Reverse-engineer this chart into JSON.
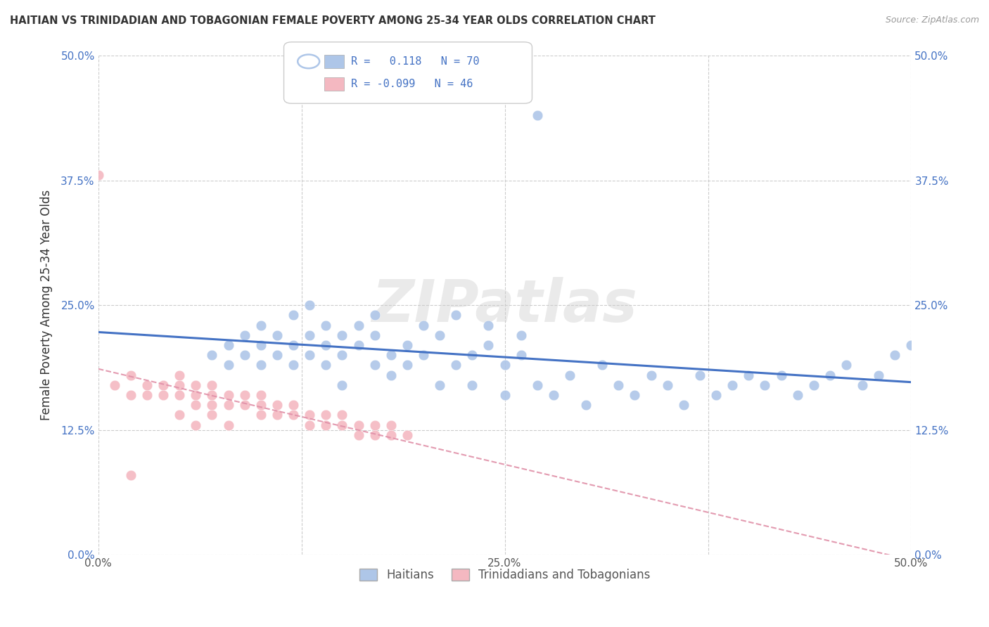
{
  "title": "HAITIAN VS TRINIDADIAN AND TOBAGONIAN FEMALE POVERTY AMONG 25-34 YEAR OLDS CORRELATION CHART",
  "source": "Source: ZipAtlas.com",
  "ylabel": "Female Poverty Among 25-34 Year Olds",
  "xlim": [
    0.0,
    0.5
  ],
  "ylim": [
    0.0,
    0.5
  ],
  "xticks": [
    0.0,
    0.125,
    0.25,
    0.375,
    0.5
  ],
  "yticks": [
    0.0,
    0.125,
    0.25,
    0.375,
    0.5
  ],
  "xticklabels": [
    "0.0%",
    "",
    "25.0%",
    "",
    "50.0%"
  ],
  "yticklabels": [
    "0.0%",
    "12.5%",
    "25.0%",
    "37.5%",
    "50.0%"
  ],
  "legend_labels": [
    "Haitians",
    "Trinidadians and Tobagonians"
  ],
  "legend_R": [
    0.118,
    -0.099
  ],
  "legend_N": [
    70,
    46
  ],
  "blue_color": "#aec6e8",
  "pink_color": "#f4b8c1",
  "blue_line_color": "#4472c4",
  "pink_line_color": "#e090a8",
  "watermark": "ZIPatlas",
  "blue_scatter_x": [
    0.07,
    0.08,
    0.08,
    0.09,
    0.09,
    0.1,
    0.1,
    0.1,
    0.11,
    0.11,
    0.12,
    0.12,
    0.12,
    0.13,
    0.13,
    0.13,
    0.14,
    0.14,
    0.14,
    0.15,
    0.15,
    0.15,
    0.16,
    0.16,
    0.17,
    0.17,
    0.17,
    0.18,
    0.18,
    0.19,
    0.19,
    0.2,
    0.2,
    0.21,
    0.21,
    0.22,
    0.22,
    0.23,
    0.23,
    0.24,
    0.24,
    0.25,
    0.25,
    0.26,
    0.26,
    0.27,
    0.28,
    0.29,
    0.3,
    0.31,
    0.32,
    0.33,
    0.34,
    0.35,
    0.36,
    0.37,
    0.38,
    0.39,
    0.4,
    0.41,
    0.42,
    0.43,
    0.44,
    0.45,
    0.46,
    0.47,
    0.48,
    0.49,
    0.27,
    0.5
  ],
  "blue_scatter_y": [
    0.2,
    0.21,
    0.19,
    0.2,
    0.22,
    0.19,
    0.21,
    0.23,
    0.2,
    0.22,
    0.19,
    0.21,
    0.24,
    0.2,
    0.22,
    0.25,
    0.19,
    0.21,
    0.23,
    0.2,
    0.22,
    0.17,
    0.21,
    0.23,
    0.19,
    0.22,
    0.24,
    0.2,
    0.18,
    0.21,
    0.19,
    0.23,
    0.2,
    0.17,
    0.22,
    0.19,
    0.24,
    0.2,
    0.17,
    0.21,
    0.23,
    0.19,
    0.16,
    0.2,
    0.22,
    0.17,
    0.16,
    0.18,
    0.15,
    0.19,
    0.17,
    0.16,
    0.18,
    0.17,
    0.15,
    0.18,
    0.16,
    0.17,
    0.18,
    0.17,
    0.18,
    0.16,
    0.17,
    0.18,
    0.19,
    0.17,
    0.18,
    0.2,
    0.44,
    0.21
  ],
  "pink_scatter_x": [
    0.0,
    0.01,
    0.02,
    0.02,
    0.03,
    0.03,
    0.04,
    0.04,
    0.05,
    0.05,
    0.05,
    0.06,
    0.06,
    0.06,
    0.07,
    0.07,
    0.07,
    0.08,
    0.08,
    0.09,
    0.09,
    0.1,
    0.1,
    0.1,
    0.11,
    0.11,
    0.12,
    0.12,
    0.13,
    0.13,
    0.14,
    0.14,
    0.15,
    0.15,
    0.16,
    0.16,
    0.17,
    0.17,
    0.18,
    0.18,
    0.19,
    0.05,
    0.06,
    0.07,
    0.08,
    0.02
  ],
  "pink_scatter_y": [
    0.38,
    0.17,
    0.16,
    0.18,
    0.16,
    0.17,
    0.16,
    0.17,
    0.16,
    0.17,
    0.18,
    0.15,
    0.16,
    0.17,
    0.15,
    0.16,
    0.17,
    0.15,
    0.16,
    0.15,
    0.16,
    0.15,
    0.16,
    0.14,
    0.14,
    0.15,
    0.14,
    0.15,
    0.13,
    0.14,
    0.13,
    0.14,
    0.13,
    0.14,
    0.13,
    0.12,
    0.13,
    0.12,
    0.12,
    0.13,
    0.12,
    0.14,
    0.13,
    0.14,
    0.13,
    0.08
  ]
}
